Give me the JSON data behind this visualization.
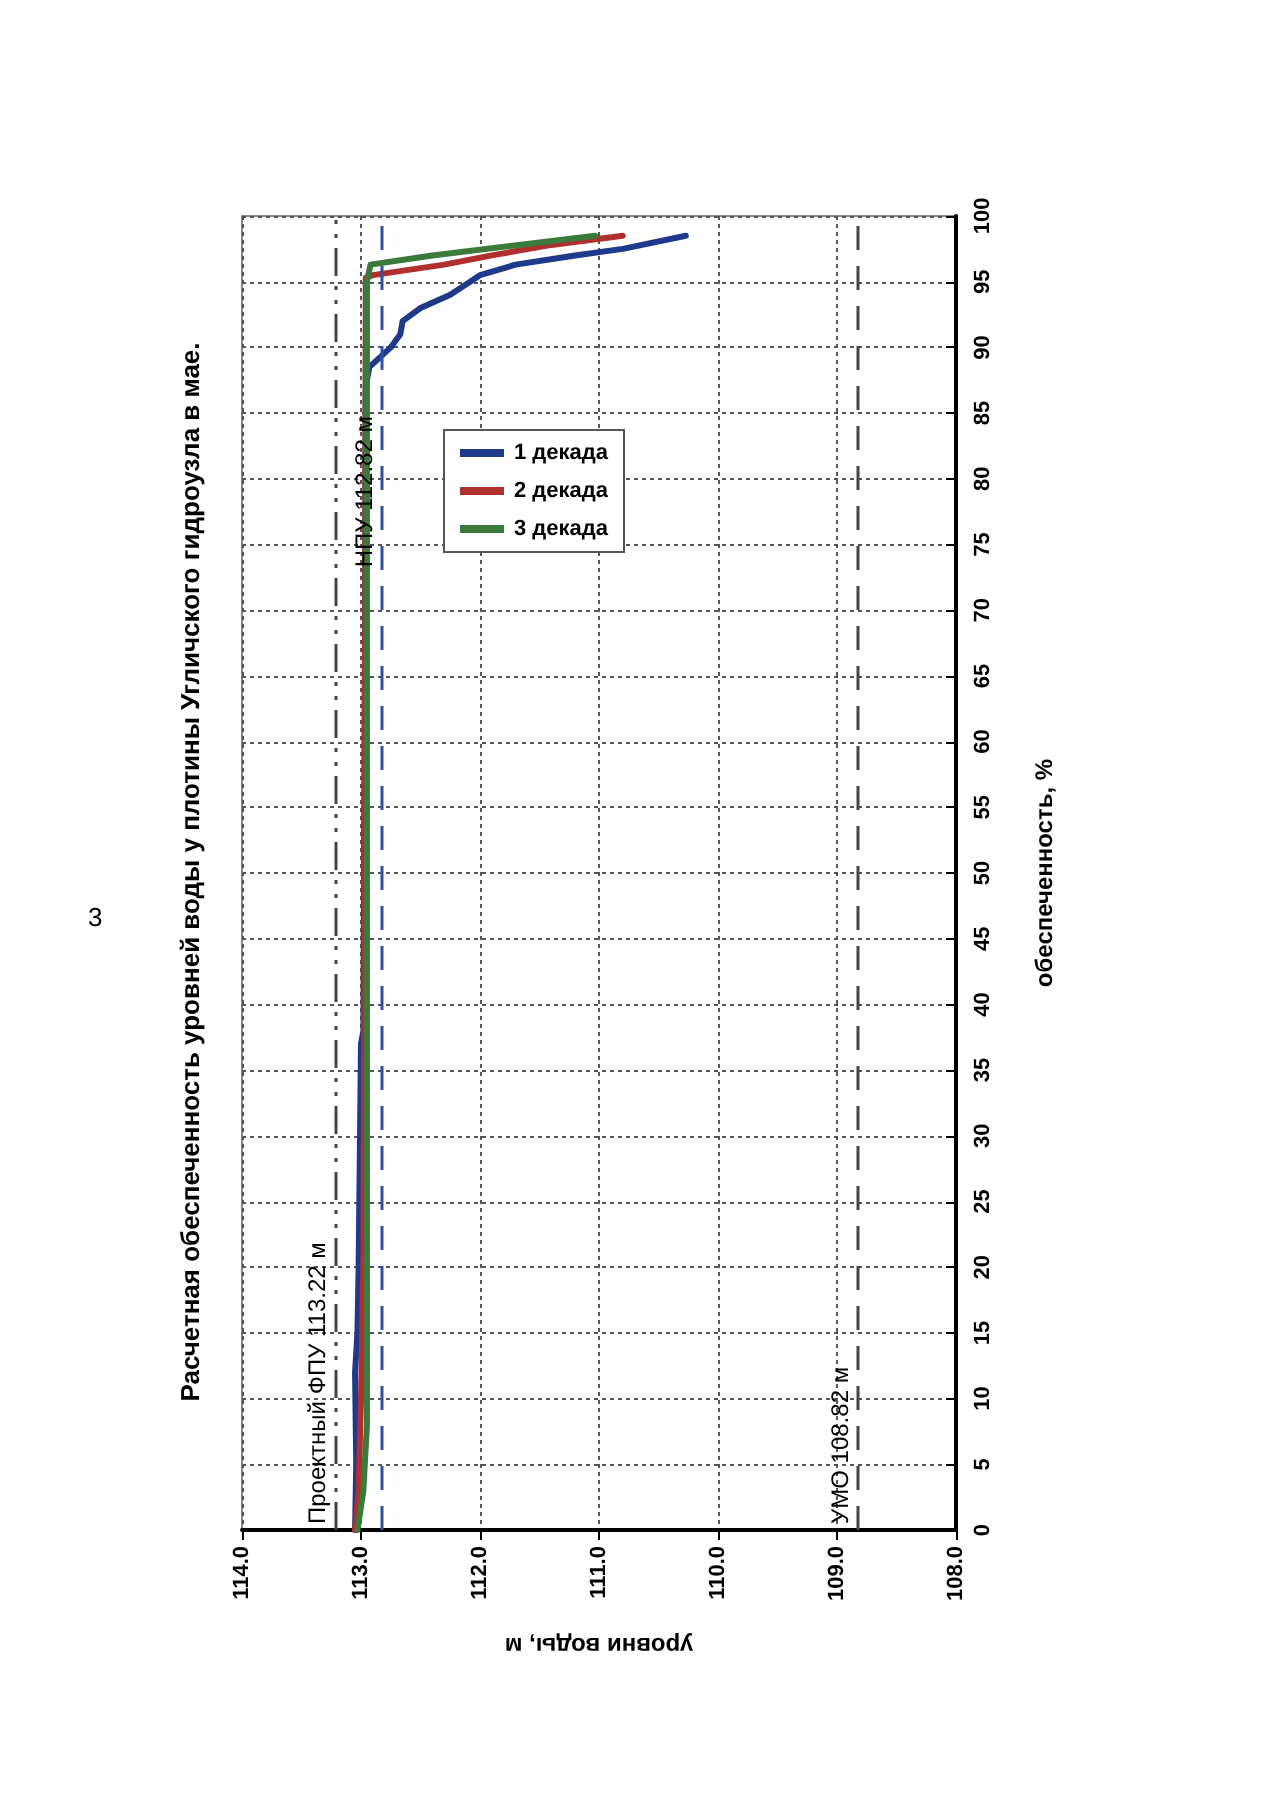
{
  "chart_data": {
    "type": "line",
    "title": "Расчетная обеспеченность уровней воды у плотины Угличского гидроузла в мае.",
    "xlabel": "уровни воды, м",
    "ylabel": "обеспеченность, %",
    "annotations": [
      "3"
    ],
    "ylim": [
      0,
      100
    ],
    "yticks": [
      0,
      5,
      10,
      15,
      20,
      25,
      30,
      35,
      40,
      45,
      50,
      55,
      60,
      65,
      70,
      75,
      80,
      85,
      90,
      95,
      100
    ],
    "xlim": [
      114,
      108
    ],
    "xticks": [
      {
        "value": 114,
        "label": "114.0"
      },
      {
        "value": 113,
        "label": "113.0"
      },
      {
        "value": 112,
        "label": "112.0"
      },
      {
        "value": 111,
        "label": "111.0"
      },
      {
        "value": 110,
        "label": "110.0"
      },
      {
        "value": 109,
        "label": "109.0"
      },
      {
        "value": 108,
        "label": "108.0"
      }
    ],
    "grid": true,
    "legend": "top",
    "marker": "none",
    "line_style": "solid",
    "series": [
      {
        "name": "1 декада",
        "color": "#1f3a8a",
        "values": [
          0,
          5,
          12,
          15,
          20,
          37,
          38,
          60,
          87,
          88.5,
          90,
          91,
          92,
          93,
          94,
          95.5,
          96.3,
          97,
          97.5,
          98.5
        ],
        "x": [
          113.05,
          113.04,
          113.05,
          113.03,
          113.02,
          113.0,
          112.98,
          112.97,
          112.96,
          112.93,
          112.75,
          112.67,
          112.65,
          112.5,
          112.25,
          112.0,
          111.7,
          111.2,
          110.8,
          110.27
        ]
      },
      {
        "name": "2 декада",
        "color": "#b03030",
        "values": [
          0,
          3,
          10,
          20,
          50,
          95.3,
          95.5,
          96.3,
          97,
          97.8,
          98.5
        ],
        "x": [
          113.05,
          113.02,
          113.0,
          112.98,
          112.97,
          112.96,
          112.9,
          112.3,
          111.9,
          111.4,
          110.8
        ]
      },
      {
        "name": "3 декада",
        "color": "#3a7a3a",
        "values": [
          0,
          3,
          8,
          20,
          95,
          96.3,
          97,
          98.5
        ],
        "x": [
          113.03,
          112.98,
          112.95,
          112.95,
          112.95,
          112.92,
          112.4,
          111.03
        ]
      }
    ],
    "ref_lines": [
      {
        "axis": "x",
        "value": 113.22,
        "label": "Проектный ФПУ 113.22 м",
        "color": "#444444",
        "line_style": "dashdot"
      },
      {
        "axis": "x",
        "value": 112.82,
        "label": "НПУ 112.82 м",
        "color": "#3050a0",
        "line_style": "dashed"
      },
      {
        "axis": "x",
        "value": 108.82,
        "label": "УМО 108.82 м",
        "color": "#444444",
        "line_style": "dashed"
      }
    ]
  }
}
